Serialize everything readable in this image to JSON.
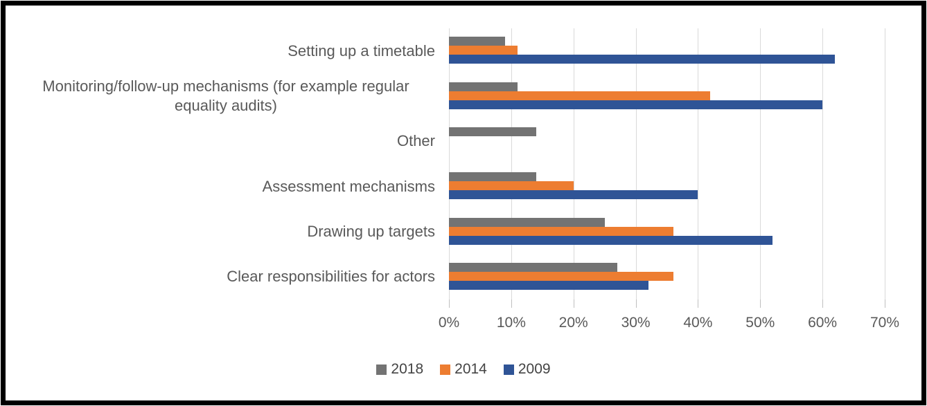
{
  "frame": {
    "border_color": "#000000",
    "background": "#ffffff"
  },
  "chart_data": {
    "type": "bar",
    "orientation": "horizontal",
    "title": "",
    "xlabel": "",
    "ylabel": "",
    "categories": [
      "Setting up a timetable",
      "Monitoring/follow-up mechanisms (for example regular equality audits)",
      "Other",
      "Assessment mechanisms",
      "Drawing up targets",
      "Clear responsibilities for actors"
    ],
    "series": [
      {
        "name": "2018",
        "color": "#737373",
        "values": [
          9,
          11,
          14,
          14,
          25,
          27
        ]
      },
      {
        "name": "2014",
        "color": "#ED7D31",
        "values": [
          11,
          42,
          0,
          20,
          36,
          36
        ]
      },
      {
        "name": "2009",
        "color": "#2F5496",
        "values": [
          62,
          60,
          0,
          40,
          52,
          32
        ]
      }
    ],
    "bar_order_note": "within each category, bars top-to-bottom: 2018, 2014, 2009",
    "x_axis": {
      "min": 0,
      "max": 70,
      "step": 10,
      "tick_labels": [
        "0%",
        "10%",
        "20%",
        "30%",
        "40%",
        "50%",
        "60%",
        "70%"
      ]
    },
    "grid": true,
    "gridline_color": "#d9d9d9",
    "tick_color": "#bfbfbf",
    "text_color": "#595959",
    "legend": {
      "position": "bottom",
      "entries": [
        "2018",
        "2014",
        "2009"
      ]
    }
  }
}
